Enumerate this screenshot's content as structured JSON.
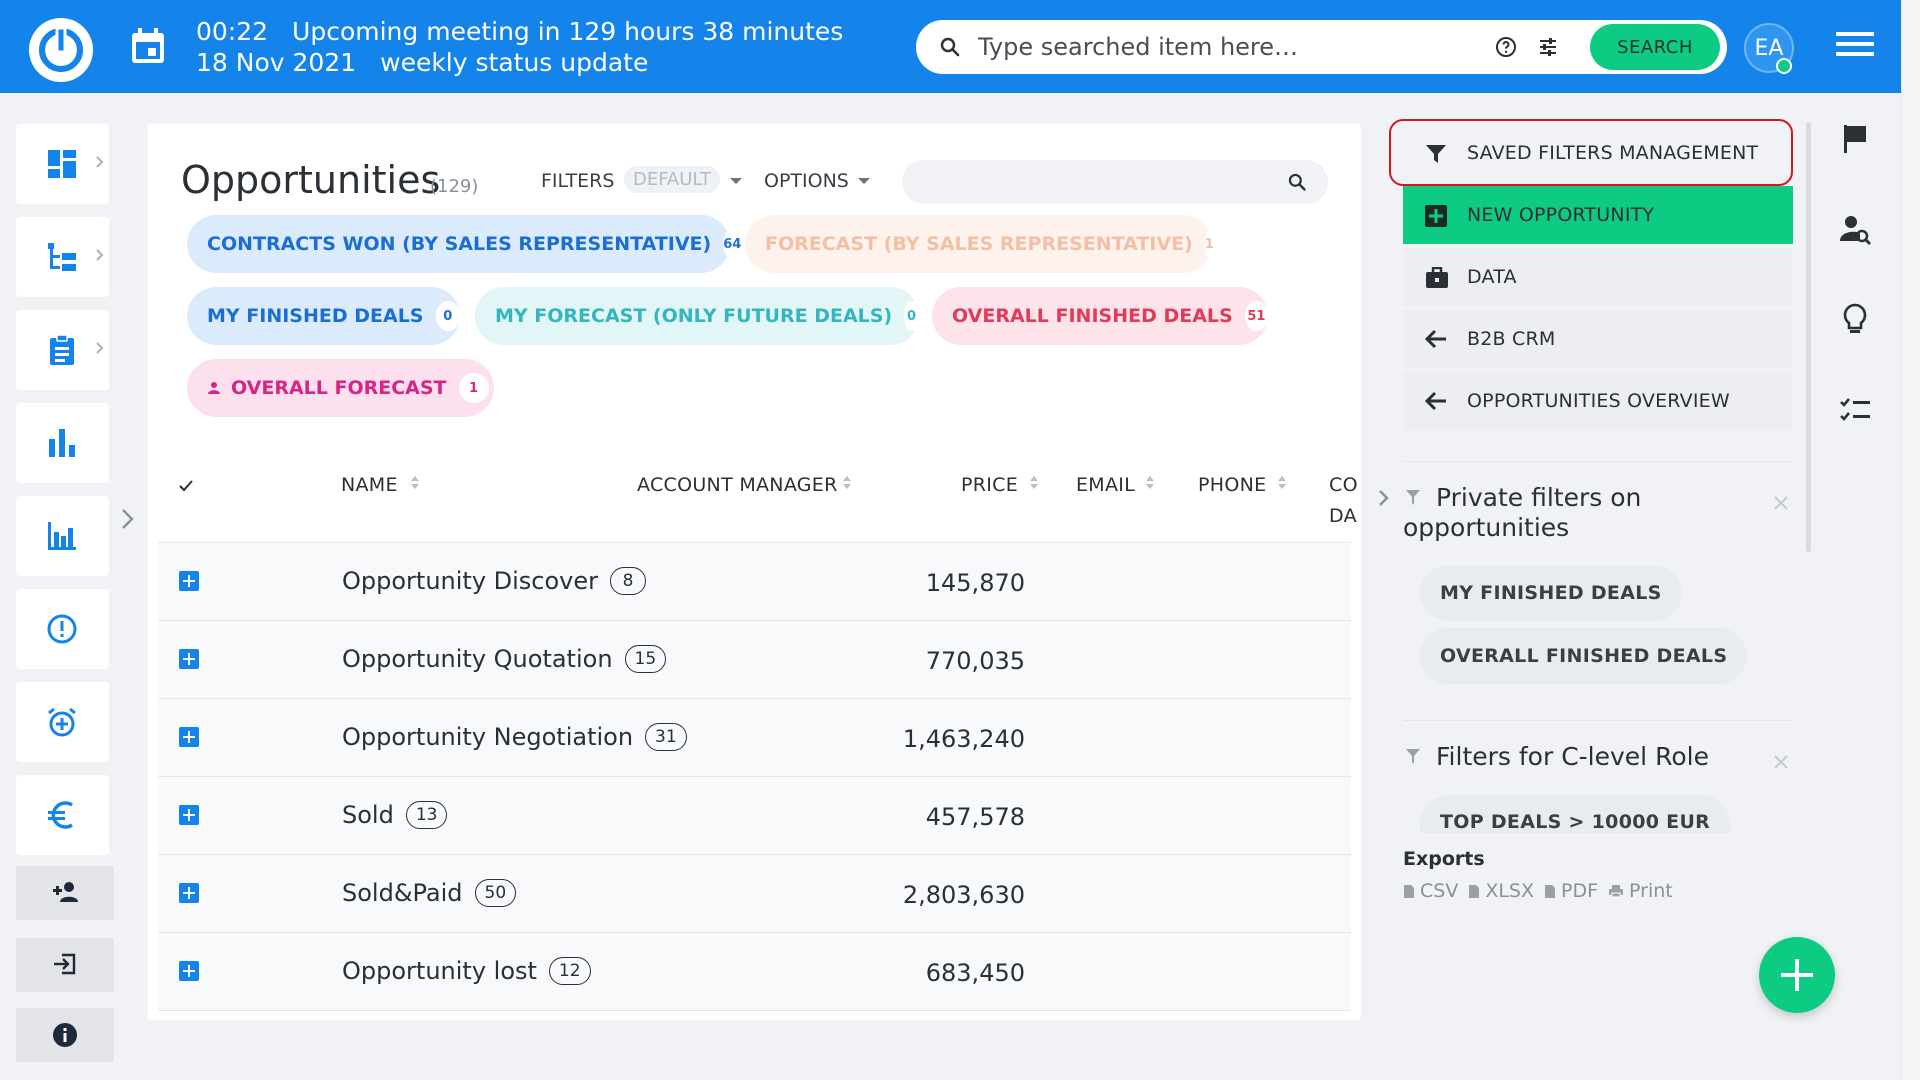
{
  "header": {
    "time": "00:22",
    "meeting_text": "Upcoming meeting in 129 hours 38 minutes",
    "date": "18 Nov 2021",
    "meeting_title": "weekly status update",
    "search_placeholder": "Type searched item here…",
    "search_button": "SEARCH",
    "avatar_initials": "EA"
  },
  "page": {
    "title": "Opportunities",
    "count": "(129)",
    "filters_label": "FILTERS",
    "filters_value": "DEFAULT",
    "options_label": "OPTIONS"
  },
  "chips": [
    {
      "label": "CONTRACTS WON (BY SALES REPRESENTATIVE)",
      "count": "64"
    },
    {
      "label": "FORECAST (BY SALES REPRESENTATIVE)",
      "count": "1"
    },
    {
      "label": "MY FINISHED DEALS",
      "count": "0"
    },
    {
      "label": "MY FORECAST (ONLY FUTURE DEALS)",
      "count": "0"
    },
    {
      "label": "OVERALL FINISHED DEALS",
      "count": "51"
    },
    {
      "label": "OVERALL FORECAST",
      "count": "1"
    }
  ],
  "table": {
    "columns": [
      "NAME",
      "ACCOUNT MANAGER",
      "PRICE",
      "EMAIL",
      "PHONE",
      "CO",
      "DA"
    ],
    "rows": [
      {
        "name": "Opportunity Discover",
        "count": "8",
        "price": "145,870"
      },
      {
        "name": "Opportunity Quotation",
        "count": "15",
        "price": "770,035"
      },
      {
        "name": "Opportunity Negotiation",
        "count": "31",
        "price": "1,463,240"
      },
      {
        "name": "Sold",
        "count": "13",
        "price": "457,578"
      },
      {
        "name": "Sold&Paid",
        "count": "50",
        "price": "2,803,630"
      },
      {
        "name": "Opportunity lost",
        "count": "12",
        "price": "683,450"
      }
    ]
  },
  "actions": [
    {
      "label": "SAVED FILTERS MANAGEMENT",
      "icon": "filter-icon"
    },
    {
      "label": "NEW OPPORTUNITY",
      "icon": "plus-square-icon"
    },
    {
      "label": "DATA",
      "icon": "briefcase-icon"
    },
    {
      "label": "B2B CRM",
      "icon": "arrow-left-icon"
    },
    {
      "label": "OPPORTUNITIES OVERVIEW",
      "icon": "arrow-left-icon"
    }
  ],
  "filter_groups": [
    {
      "title_line1": "Private filters on",
      "title_line2": "opportunities",
      "items": [
        "MY FINISHED DEALS",
        "OVERALL FINISHED DEALS"
      ]
    },
    {
      "title_line1": "Filters for C-level Role",
      "items": [
        "TOP DEALS > 10000 EUR"
      ]
    }
  ],
  "exports": {
    "title": "Exports",
    "items": [
      "CSV",
      "XLSX",
      "PDF",
      "Print"
    ]
  },
  "colors": {
    "brand_blue": "#1584ea",
    "accent_green": "#0ecb84",
    "highlight_red": "#d0181e"
  }
}
